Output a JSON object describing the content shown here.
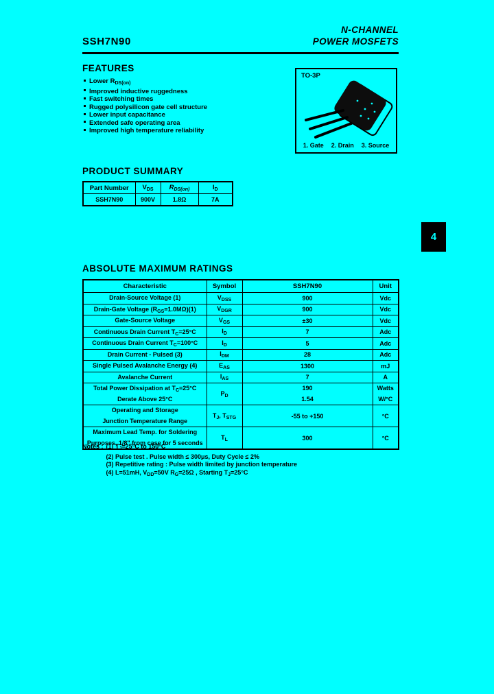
{
  "page": {
    "background": "#00ffff",
    "ink": "#000000",
    "tab_number": "4"
  },
  "header": {
    "part_number": "SSH7N90",
    "category_line1": "N-CHANNEL",
    "category_line2": "POWER MOSFETS"
  },
  "features": {
    "title": "FEATURES",
    "items": [
      "Lower R_{DS(on)}",
      "Improved inductive ruggedness",
      "Fast switching times",
      "Rugged polysilicon gate cell structure",
      "Lower input capacitance",
      "Extended safe operating area",
      "Improved high temperature reliability"
    ]
  },
  "package_box": {
    "label": "TO-3P",
    "pins": [
      "1. Gate",
      "2. Drain",
      "3. Source"
    ]
  },
  "product_summary": {
    "title": "PRODUCT SUMMARY",
    "headers": [
      "Part Number",
      "V_{DS}",
      "R_{DS(on)}",
      "I_{D}"
    ],
    "row": [
      "SSH7N90",
      "900V",
      "1.8Ω",
      "7A"
    ]
  },
  "ratings": {
    "title": "ABSOLUTE MAXIMUM RATINGS",
    "headers": [
      "Characteristic",
      "Symbol",
      "SSH7N90",
      "Unit"
    ],
    "rows": [
      {
        "characteristic_lines": [
          "Drain-Source Voltage (1)"
        ],
        "symbol": "V_{DSS}",
        "values": [
          "900"
        ],
        "units": [
          "Vdc"
        ]
      },
      {
        "characteristic_lines": [
          "Drain-Gate Voltage (R_{GS}=1.0MΩ)(1)"
        ],
        "symbol": "V_{DGR}",
        "values": [
          "900"
        ],
        "units": [
          "Vdc"
        ]
      },
      {
        "characteristic_lines": [
          "Gate-Source Voltage"
        ],
        "symbol": "V_{GS}",
        "values": [
          "±30"
        ],
        "units": [
          "Vdc"
        ]
      },
      {
        "characteristic_lines": [
          "Continuous Drain Current T_{C}=25°C"
        ],
        "symbol": "I_{D}",
        "values": [
          "7"
        ],
        "units": [
          "Adc"
        ]
      },
      {
        "characteristic_lines": [
          "Continuous Drain Current T_{C}=100°C"
        ],
        "symbol": "I_{D}",
        "values": [
          "5"
        ],
        "units": [
          "Adc"
        ]
      },
      {
        "characteristic_lines": [
          "Drain Current - Pulsed (3)"
        ],
        "symbol": "I_{DM}",
        "values": [
          "28"
        ],
        "units": [
          "Adc"
        ]
      },
      {
        "characteristic_lines": [
          "Single Pulsed Avalanche Energy (4)"
        ],
        "symbol": "E_{AS}",
        "values": [
          "1300"
        ],
        "units": [
          "mJ"
        ]
      },
      {
        "characteristic_lines": [
          "Avalanche Current"
        ],
        "symbol": "I_{AS}",
        "values": [
          "7"
        ],
        "units": [
          "A"
        ]
      },
      {
        "characteristic_lines": [
          "Total Power Dissipation at T_{C}=25°C",
          "Derate Above 25°C"
        ],
        "symbol": "P_{D}",
        "values": [
          "190",
          "1.54"
        ],
        "units": [
          "Watts",
          "W/°C"
        ]
      },
      {
        "characteristic_lines": [
          "Operating and Storage",
          "Junction Temperature Range"
        ],
        "symbol": "T_{J}, T_{STG}",
        "values": [
          "-55 to +150"
        ],
        "units": [
          "°C"
        ]
      },
      {
        "characteristic_lines": [
          "Maximum Lead Temp. for Soldering",
          "Purposes, 1/8\" from case for 5 seconds"
        ],
        "symbol": "T_{L}",
        "values": [
          "300"
        ],
        "units": [
          "°C"
        ]
      }
    ]
  },
  "notes": {
    "label": "Notes :",
    "items": [
      "(1) T_{J}=25°C to 150°C",
      "(2) Pulse test . Pulse width ≤ 300μs, Duty Cycle ≤ 2%",
      "(3) Repetitive rating : Pulse width limited by junction temperature",
      "(4) L=51mH, V_{DD}=50V R_{G}=25Ω , Starting T_{J}=25°C"
    ]
  }
}
